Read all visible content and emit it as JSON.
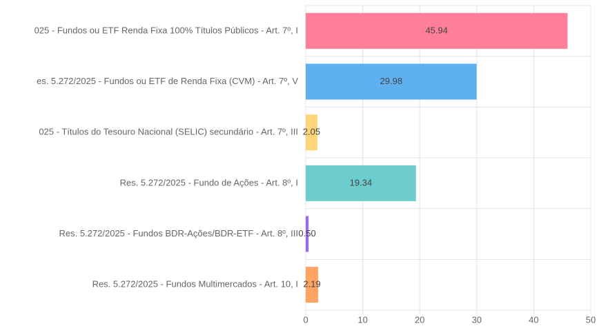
{
  "chart_data": {
    "type": "barh",
    "categories": [
      "025 - Fundos ou ETF Renda Fixa 100% Títulos Públicos - Art. 7º, I",
      "es. 5.272/2025 - Fundos ou ETF de Renda Fixa (CVM) - Art. 7º, V",
      "025 - Títulos do Tesouro Nacional (SELIC) secundário - Art. 7º, III",
      "Res. 5.272/2025 - Fundo de Ações - Art. 8º, I",
      "Res. 5.272/2025 - Fundos BDR-Ações/BDR-ETF - Art. 8º, III",
      "Res. 5.272/2025 - Fundos Multimercados - Art. 10, I"
    ],
    "values": [
      45.94,
      29.98,
      2.05,
      19.34,
      0.5,
      2.19
    ],
    "value_labels": [
      "45.94",
      "29.98",
      "2.05",
      "19.34",
      "0.50",
      "2.19"
    ],
    "colors": [
      "#ff7f98",
      "#5eb0ef",
      "#ffd57a",
      "#6dcdcd",
      "#9966ff",
      "#ffa463"
    ],
    "xlim": [
      0,
      50
    ],
    "xticks": [
      0,
      10,
      20,
      30,
      40,
      50
    ],
    "grid": true
  }
}
